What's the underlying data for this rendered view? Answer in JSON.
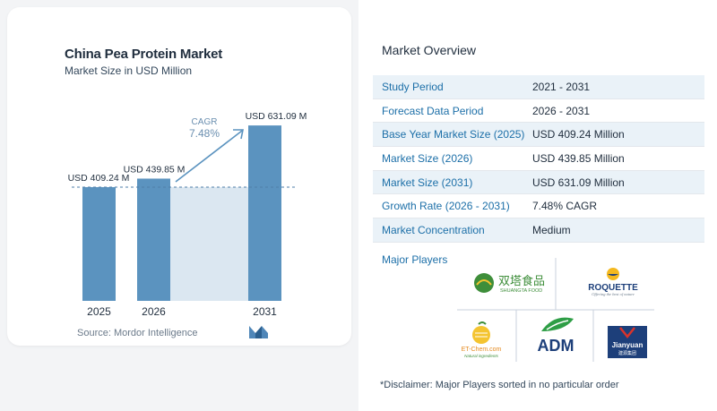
{
  "chart": {
    "title": "China Pea Protein Market",
    "subtitle": "Market Size in USD Million",
    "source": "Source:  Mordor Intelligence",
    "cagr_label": "CAGR",
    "cagr_value": "7.48%"
  },
  "chart_data": {
    "type": "bar",
    "title": "China Pea Protein Market",
    "subtitle": "Market Size in USD Million",
    "categories": [
      "2025",
      "2026",
      "2031"
    ],
    "values": [
      409.24,
      439.85,
      631.09
    ],
    "data_labels": [
      "USD 409.24 M",
      "USD 439.85 M",
      "USD 631.09 M"
    ],
    "unit": "USD Million",
    "cagr": "7.48%",
    "colors": {
      "bar": "#5b93bf",
      "band": "#dbe7f1"
    }
  },
  "overview": {
    "title": "Market Overview",
    "rows": [
      {
        "label": "Study Period",
        "value": "2021 - 2031"
      },
      {
        "label": "Forecast Data Period",
        "value": "2026 - 2031"
      },
      {
        "label": "Base Year Market Size (2025)",
        "value": "USD 409.24 Million"
      },
      {
        "label": "Market Size (2026)",
        "value": "USD 439.85 Million"
      },
      {
        "label": "Market Size (2031)",
        "value": "USD 631.09 Million"
      },
      {
        "label": "Growth Rate (2026 - 2031)",
        "value": "7.48% CAGR"
      },
      {
        "label": "Market Concentration",
        "value": "Medium"
      }
    ]
  },
  "players": {
    "title": "Major Players",
    "logos": [
      "SHUANGTA FOOD",
      "ROQUETTE",
      "ET-Chem.com",
      "ADM",
      "Jianyuan"
    ],
    "logo_texts": {
      "shuangta_cn": "双塔食品",
      "shuangta_en": "SHUANGTA FOOD",
      "roquette": "ROQUETTE",
      "roquette_tag": "Offering the best of nature",
      "etchem": "ET-Chem.com",
      "etchem_tag": "Natural ingredients",
      "adm": "ADM",
      "jianyuan": "Jianyuan",
      "jianyuan_cn": "建源集团"
    },
    "disclaimer": "*Disclaimer: Major Players sorted in no particular order"
  },
  "colors": {
    "accent": "#1c6fa8",
    "row_shade": "#eaf2f8"
  }
}
